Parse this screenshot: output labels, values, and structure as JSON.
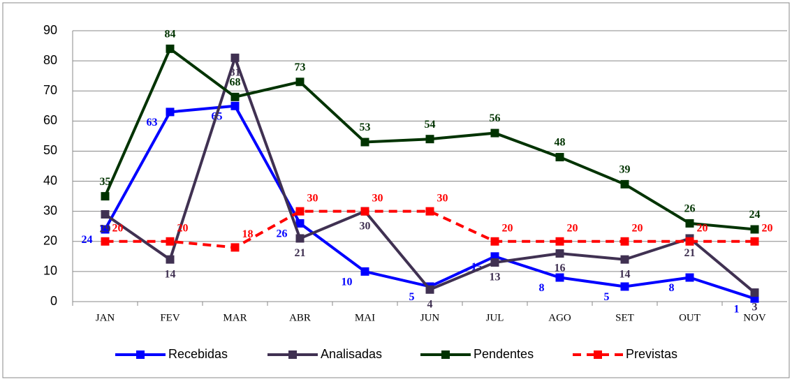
{
  "chart_data": {
    "type": "line",
    "categories": [
      "JAN",
      "FEV",
      "MAR",
      "ABR",
      "MAI",
      "JUN",
      "JUL",
      "AGO",
      "SET",
      "OUT",
      "NOV"
    ],
    "series": [
      {
        "name": "Recebidas",
        "color": "#0000ff",
        "values": [
          24,
          63,
          65,
          26,
          10,
          5,
          15,
          8,
          5,
          8,
          1
        ]
      },
      {
        "name": "Analisadas",
        "color": "#403152",
        "values": [
          29,
          14,
          81,
          21,
          30,
          4,
          13,
          16,
          14,
          21,
          3
        ]
      },
      {
        "name": "Pendentes",
        "color": "#003300",
        "values": [
          35,
          84,
          68,
          73,
          53,
          54,
          56,
          48,
          39,
          26,
          24
        ]
      },
      {
        "name": "Previstas",
        "color": "#ff0000",
        "dashed": true,
        "values": [
          20,
          20,
          18,
          30,
          30,
          30,
          20,
          20,
          20,
          20,
          20
        ]
      }
    ],
    "ylim": [
      0,
      90
    ],
    "yticks": [
      0,
      10,
      20,
      30,
      40,
      50,
      60,
      70,
      80,
      90
    ],
    "grid": true,
    "legend": "bottom"
  }
}
